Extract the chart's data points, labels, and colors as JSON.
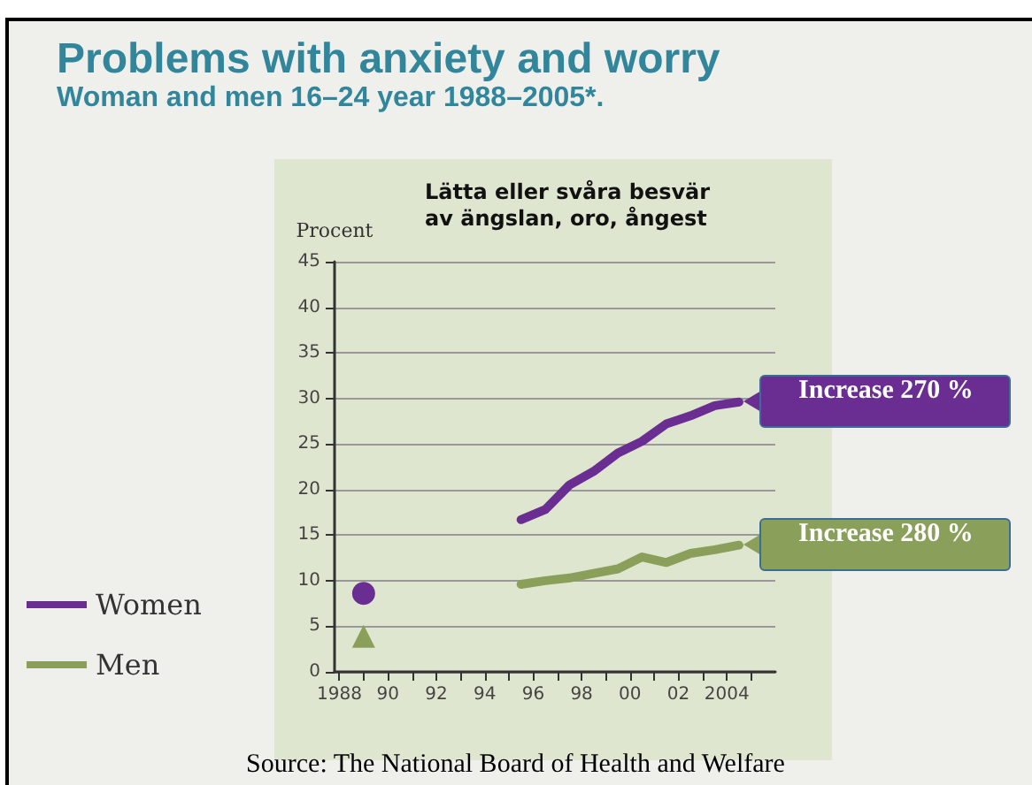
{
  "chart_data": {
    "type": "line",
    "title": "Problems with anxiety and worry",
    "subtitle": "Woman and men 16–24 year 1988–2005*.",
    "ylabel": "Procent",
    "annotations": [
      "Lätta eller svåra besvär\nav ängslan, oro, ångest",
      "Source: The National Board of Health and Welfare",
      {
        "text": "Increase 270 %",
        "x": 2004.5,
        "y": 29.6
      },
      {
        "text": "Increase 280 %",
        "x": 2004.5,
        "y": 13.9
      }
    ],
    "series": [
      {
        "name": "Women",
        "color": "#6a2d91",
        "type": "line",
        "marker": "none",
        "x": [
          1995.5,
          1996.5,
          1997.5,
          1998.5,
          1999.5,
          2000.5,
          2001.5,
          2002.5,
          2003.5,
          2004.5
        ],
        "values": [
          16.7,
          17.8,
          20.5,
          22,
          24,
          25.3,
          27.2,
          28.1,
          29.2,
          29.6
        ]
      },
      {
        "name": "Men",
        "color": "#8aa05a",
        "type": "line",
        "marker": "none",
        "x": [
          1995.5,
          1996.5,
          1997.5,
          1998.5,
          1999.5,
          2000.5,
          2001.5,
          2002.5,
          2003.5,
          2004.5
        ],
        "values": [
          9.6,
          10,
          10.3,
          10.8,
          11.3,
          12.6,
          12,
          13,
          13.4,
          13.9
        ]
      },
      {
        "color": "#6a2d91",
        "type": "scatter",
        "marker": "circle",
        "x": [
          1989
        ],
        "values": [
          8.6
        ]
      },
      {
        "color": "#8aa05a",
        "type": "scatter",
        "marker": "triangle",
        "x": [
          1989
        ],
        "values": [
          3.9
        ]
      }
    ],
    "xlim": [
      1987.8,
      2006
    ],
    "ylim": [
      0,
      45
    ],
    "xticks": [
      {
        "value": 1988,
        "label": "1988"
      },
      {
        "value": 1989,
        "label": null
      },
      {
        "value": 1990,
        "label": "90"
      },
      {
        "value": 1991,
        "label": null
      },
      {
        "value": 1992,
        "label": "92"
      },
      {
        "value": 1993,
        "label": null
      },
      {
        "value": 1994,
        "label": "94"
      },
      {
        "value": 1995,
        "label": null
      },
      {
        "value": 1996,
        "label": "96"
      },
      {
        "value": 1997,
        "label": null
      },
      {
        "value": 1998,
        "label": "98"
      },
      {
        "value": 1999,
        "label": null
      },
      {
        "value": 2000,
        "label": "00"
      },
      {
        "value": 2001,
        "label": null
      },
      {
        "value": 2002,
        "label": "02"
      },
      {
        "value": 2003,
        "label": null
      },
      {
        "value": 2004,
        "label": "2004"
      },
      {
        "value": 2005,
        "label": null
      }
    ],
    "yticks": [
      0,
      5,
      10,
      15,
      20,
      25,
      30,
      35,
      40,
      45
    ],
    "grid": "y",
    "legend": "bottom left"
  }
}
